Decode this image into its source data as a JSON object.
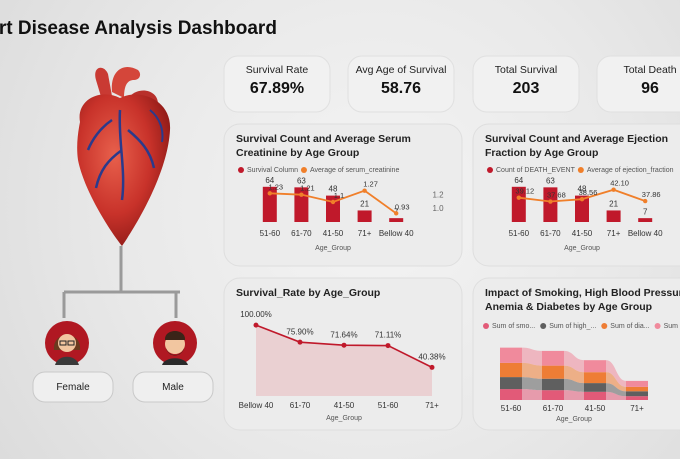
{
  "header": {
    "title": "Heart Disease Analysis Dashboard"
  },
  "kpis": [
    {
      "label": "Survival Rate",
      "value": "67.89%"
    },
    {
      "label": "Avg Age of Survival",
      "value": "58.76"
    },
    {
      "label": "Total Survival",
      "value": "203"
    },
    {
      "label": "Total Death",
      "value": "96"
    }
  ],
  "gender": [
    "Female",
    "Male"
  ],
  "chart_data": [
    {
      "type": "combo",
      "title": "Survival Count and Average Serum Creatinine by Age Group",
      "categories": [
        "51-60",
        "61-70",
        "41-50",
        "71+",
        "Bellow 40"
      ],
      "xlabel": "Age_Group",
      "series": [
        {
          "name": "Survival Column",
          "color": "#c0192b",
          "mark": "bar",
          "values": [
            64,
            63,
            48,
            21,
            7
          ]
        },
        {
          "name": "Average of serum_creatinine",
          "color": "#f07f2a",
          "mark": "line",
          "axis": "y2",
          "values": [
            1.23,
            1.21,
            1.1,
            1.27,
            0.93
          ]
        }
      ],
      "ylim": [
        0,
        160
      ],
      "y2lim": [
        0.8,
        1.4
      ],
      "y2ticks": [
        {
          "value": 1,
          "label": "1.0"
        },
        1.2
      ]
    },
    {
      "type": "combo",
      "title": "Survival Count and Average Ejection Fraction by Age Group",
      "categories": [
        "51-60",
        "61-70",
        "41-50",
        "71+",
        "Bellow 40"
      ],
      "xlabel": "Age_Group",
      "series": [
        {
          "name": "Count of DEATH_EVENT",
          "color": "#c0192b",
          "mark": "bar",
          "values": [
            64,
            63,
            48,
            21,
            7
          ]
        },
        {
          "name": "Average of ejection_fraction",
          "color": "#f07f2a",
          "mark": "line",
          "axis": "y2",
          "values": [
            39.12,
            37.68,
            38.56,
            42.1,
            37.86
          ],
          "value_labels": [
            "39.12",
            "37.68",
            "38.56",
            "42.10",
            "37.86"
          ]
        }
      ],
      "ylim": [
        0,
        160
      ],
      "y2lim": [
        30,
        45
      ]
    },
    {
      "type": "area",
      "title": "Survival_Rate by Age_Group",
      "categories": [
        "Bellow 40",
        "61-70",
        "41-50",
        "51-60",
        "71+"
      ],
      "xlabel": "Age_Group",
      "color": "#c0192b",
      "values": [
        100,
        75.9,
        71.64,
        71.11,
        40.38
      ],
      "value_labels": [
        "100.00%",
        "75.90%",
        "71.64%",
        "71.11%",
        "40.38%"
      ],
      "ylim": [
        0,
        110
      ]
    },
    {
      "type": "ribbon",
      "title": "Impact of Smoking, High Blood Pressure, Anemia & Diabetes by Age Group",
      "categories": [
        "51-60",
        "61-70",
        "41-50",
        "71+"
      ],
      "xlabel": "Age_Group",
      "series": [
        {
          "name": "Sum of smo...",
          "color": "#e25a78",
          "values": [
            20,
            18,
            15,
            7
          ]
        },
        {
          "name": "Sum of high_...",
          "color": "#5f5f5f",
          "values": [
            22,
            21,
            16,
            9
          ]
        },
        {
          "name": "Sum of dia...",
          "color": "#ee7d35",
          "values": [
            26,
            24,
            20,
            8
          ]
        },
        {
          "name": "Sum of a...",
          "color": "#f08a9c",
          "values": [
            28,
            27,
            22,
            11
          ]
        }
      ],
      "ylim": [
        0,
        110
      ]
    }
  ]
}
